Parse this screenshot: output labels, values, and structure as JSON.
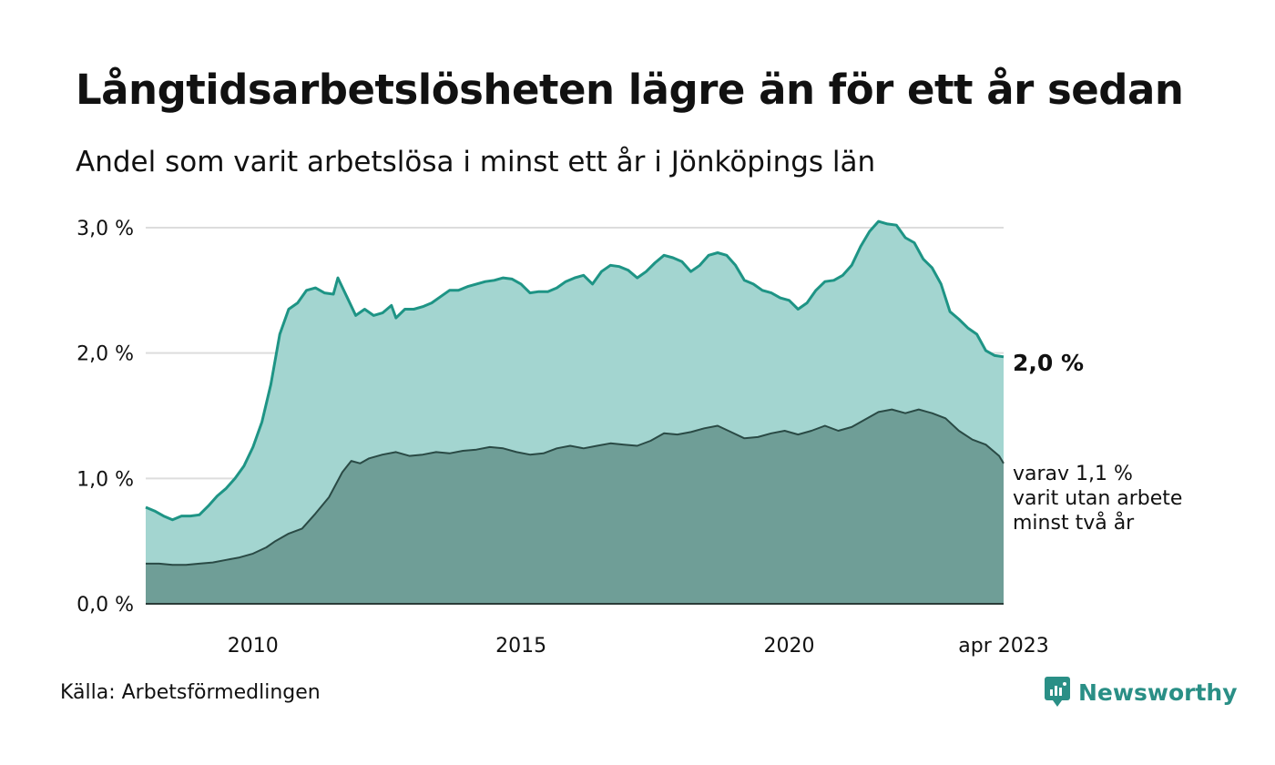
{
  "title": "Långtidsarbetslösheten lägre än för ett år sedan",
  "subtitle": "Andel som varit arbetslösa i minst ett år i Jönköpings län",
  "source": "Källa: Arbetsförmedlingen",
  "brand": {
    "name": "Newsworthy",
    "icon": "newsworthy-logo-icon",
    "color": "#2a8f86"
  },
  "colors": {
    "series1_line": "#1e9485",
    "series1_fill": "#a3d5d0",
    "series2_line": "#2a4a45",
    "series2_fill": "#6f9e97",
    "grid": "#dddddd"
  },
  "chart_data": {
    "type": "area",
    "title": "Långtidsarbetslösheten lägre än för ett år sedan",
    "subtitle": "Andel som varit arbetslösa i minst ett år i Jönköpings län",
    "xlabel": "",
    "ylabel": "",
    "x_ticks": [
      "2010",
      "2015",
      "2020",
      "apr 2023"
    ],
    "y_ticks": [
      "0,0 %",
      "1,0 %",
      "2,0 %",
      "3,0 %"
    ],
    "ylim": [
      0,
      3.0
    ],
    "xlim": [
      "2008-01",
      "2023-04"
    ],
    "grid": true,
    "legend": "none",
    "end_labels": {
      "series1": "2,0 %",
      "series2_lines": [
        "varav 1,1 %",
        "varit utan arbete",
        "minst två år"
      ]
    },
    "series": [
      {
        "values": [
          [
            "2008-01",
            0.77
          ],
          [
            "2008-03",
            0.74
          ],
          [
            "2008-05",
            0.7
          ],
          [
            "2008-07",
            0.67
          ],
          [
            "2008-09",
            0.7
          ],
          [
            "2008-11",
            0.7
          ],
          [
            "2009-01",
            0.71
          ],
          [
            "2009-03",
            0.78
          ],
          [
            "2009-05",
            0.86
          ],
          [
            "2009-07",
            0.92
          ],
          [
            "2009-09",
            1.0
          ],
          [
            "2009-11",
            1.1
          ],
          [
            "2010-01",
            1.25
          ],
          [
            "2010-03",
            1.45
          ],
          [
            "2010-05",
            1.75
          ],
          [
            "2010-07",
            2.15
          ],
          [
            "2010-09",
            2.35
          ],
          [
            "2010-11",
            2.4
          ],
          [
            "2011-01",
            2.5
          ],
          [
            "2011-03",
            2.52
          ],
          [
            "2011-05",
            2.48
          ],
          [
            "2011-07",
            2.47
          ],
          [
            "2011-08",
            2.6
          ],
          [
            "2011-10",
            2.45
          ],
          [
            "2011-12",
            2.3
          ],
          [
            "2012-02",
            2.35
          ],
          [
            "2012-04",
            2.3
          ],
          [
            "2012-06",
            2.32
          ],
          [
            "2012-08",
            2.38
          ],
          [
            "2012-09",
            2.28
          ],
          [
            "2012-11",
            2.35
          ],
          [
            "2013-01",
            2.35
          ],
          [
            "2013-03",
            2.37
          ],
          [
            "2013-05",
            2.4
          ],
          [
            "2013-07",
            2.45
          ],
          [
            "2013-09",
            2.5
          ],
          [
            "2013-11",
            2.5
          ],
          [
            "2014-01",
            2.53
          ],
          [
            "2014-03",
            2.55
          ],
          [
            "2014-05",
            2.57
          ],
          [
            "2014-07",
            2.58
          ],
          [
            "2014-09",
            2.6
          ],
          [
            "2014-11",
            2.59
          ],
          [
            "2015-01",
            2.55
          ],
          [
            "2015-03",
            2.48
          ],
          [
            "2015-05",
            2.49
          ],
          [
            "2015-07",
            2.49
          ],
          [
            "2015-09",
            2.52
          ],
          [
            "2015-11",
            2.57
          ],
          [
            "2016-01",
            2.6
          ],
          [
            "2016-03",
            2.62
          ],
          [
            "2016-05",
            2.55
          ],
          [
            "2016-07",
            2.65
          ],
          [
            "2016-09",
            2.7
          ],
          [
            "2016-11",
            2.69
          ],
          [
            "2017-01",
            2.66
          ],
          [
            "2017-03",
            2.6
          ],
          [
            "2017-05",
            2.65
          ],
          [
            "2017-07",
            2.72
          ],
          [
            "2017-09",
            2.78
          ],
          [
            "2017-11",
            2.76
          ],
          [
            "2018-01",
            2.73
          ],
          [
            "2018-03",
            2.65
          ],
          [
            "2018-05",
            2.7
          ],
          [
            "2018-07",
            2.78
          ],
          [
            "2018-09",
            2.8
          ],
          [
            "2018-11",
            2.78
          ],
          [
            "2019-01",
            2.7
          ],
          [
            "2019-03",
            2.58
          ],
          [
            "2019-05",
            2.55
          ],
          [
            "2019-07",
            2.5
          ],
          [
            "2019-09",
            2.48
          ],
          [
            "2019-11",
            2.44
          ],
          [
            "2020-01",
            2.42
          ],
          [
            "2020-03",
            2.35
          ],
          [
            "2020-05",
            2.4
          ],
          [
            "2020-07",
            2.5
          ],
          [
            "2020-09",
            2.57
          ],
          [
            "2020-11",
            2.58
          ],
          [
            "2021-01",
            2.62
          ],
          [
            "2021-03",
            2.7
          ],
          [
            "2021-05",
            2.85
          ],
          [
            "2021-07",
            2.97
          ],
          [
            "2021-09",
            3.05
          ],
          [
            "2021-11",
            3.03
          ],
          [
            "2022-01",
            3.02
          ],
          [
            "2022-03",
            2.92
          ],
          [
            "2022-05",
            2.88
          ],
          [
            "2022-07",
            2.75
          ],
          [
            "2022-09",
            2.68
          ],
          [
            "2022-11",
            2.55
          ],
          [
            "2023-01",
            2.33
          ],
          [
            "2023-03",
            2.27
          ],
          [
            "2023-05",
            2.2
          ],
          [
            "2023-07",
            2.15
          ],
          [
            "2023-09",
            2.02
          ],
          [
            "2023-11",
            1.98
          ],
          [
            "2024-01",
            1.97
          ]
        ]
      },
      {
        "values": [
          [
            "2008-01",
            0.32
          ],
          [
            "2008-04",
            0.32
          ],
          [
            "2008-07",
            0.31
          ],
          [
            "2008-10",
            0.31
          ],
          [
            "2009-01",
            0.32
          ],
          [
            "2009-04",
            0.33
          ],
          [
            "2009-07",
            0.35
          ],
          [
            "2009-10",
            0.37
          ],
          [
            "2010-01",
            0.4
          ],
          [
            "2010-04",
            0.45
          ],
          [
            "2010-06",
            0.5
          ],
          [
            "2010-09",
            0.56
          ],
          [
            "2010-12",
            0.6
          ],
          [
            "2011-03",
            0.72
          ],
          [
            "2011-06",
            0.85
          ],
          [
            "2011-09",
            1.05
          ],
          [
            "2011-11",
            1.14
          ],
          [
            "2012-01",
            1.12
          ],
          [
            "2012-03",
            1.16
          ],
          [
            "2012-06",
            1.19
          ],
          [
            "2012-09",
            1.21
          ],
          [
            "2012-12",
            1.18
          ],
          [
            "2013-03",
            1.19
          ],
          [
            "2013-06",
            1.21
          ],
          [
            "2013-09",
            1.2
          ],
          [
            "2013-12",
            1.22
          ],
          [
            "2014-03",
            1.23
          ],
          [
            "2014-06",
            1.25
          ],
          [
            "2014-09",
            1.24
          ],
          [
            "2014-12",
            1.21
          ],
          [
            "2015-03",
            1.19
          ],
          [
            "2015-06",
            1.2
          ],
          [
            "2015-09",
            1.24
          ],
          [
            "2015-12",
            1.26
          ],
          [
            "2016-03",
            1.24
          ],
          [
            "2016-06",
            1.26
          ],
          [
            "2016-09",
            1.28
          ],
          [
            "2016-12",
            1.27
          ],
          [
            "2017-03",
            1.26
          ],
          [
            "2017-06",
            1.3
          ],
          [
            "2017-09",
            1.36
          ],
          [
            "2017-12",
            1.35
          ],
          [
            "2018-03",
            1.37
          ],
          [
            "2018-06",
            1.4
          ],
          [
            "2018-09",
            1.42
          ],
          [
            "2018-12",
            1.37
          ],
          [
            "2019-03",
            1.32
          ],
          [
            "2019-06",
            1.33
          ],
          [
            "2019-09",
            1.36
          ],
          [
            "2019-12",
            1.38
          ],
          [
            "2020-03",
            1.35
          ],
          [
            "2020-06",
            1.38
          ],
          [
            "2020-09",
            1.42
          ],
          [
            "2020-12",
            1.38
          ],
          [
            "2021-03",
            1.41
          ],
          [
            "2021-06",
            1.47
          ],
          [
            "2021-09",
            1.53
          ],
          [
            "2021-12",
            1.55
          ],
          [
            "2022-03",
            1.52
          ],
          [
            "2022-06",
            1.55
          ],
          [
            "2022-09",
            1.52
          ],
          [
            "2022-12",
            1.48
          ],
          [
            "2023-03",
            1.38
          ],
          [
            "2023-06",
            1.31
          ],
          [
            "2023-09",
            1.27
          ],
          [
            "2023-12",
            1.18
          ],
          [
            "2024-01",
            1.12
          ]
        ]
      }
    ]
  }
}
